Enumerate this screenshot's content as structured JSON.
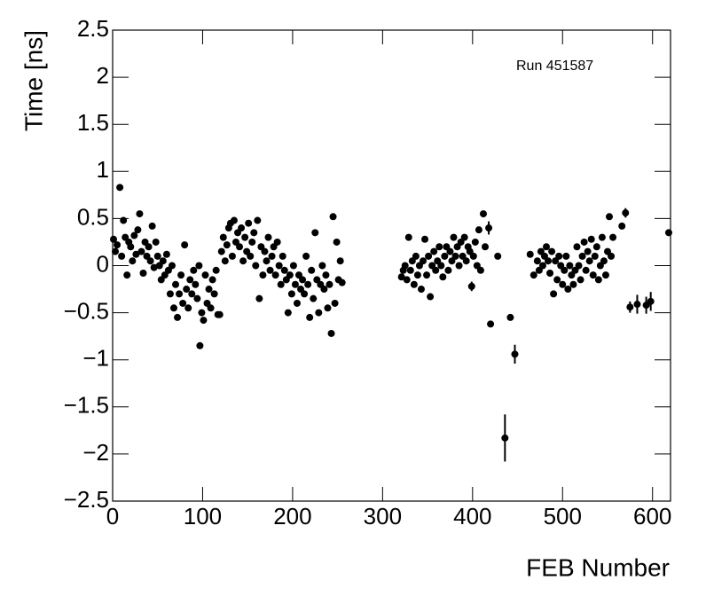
{
  "chart_data": {
    "type": "scatter",
    "annotation": "Run 451587",
    "x_label": "FEB Number",
    "y_label": "Time [ns]",
    "color": "#000000",
    "xlim": [
      0,
      620
    ],
    "ylim": [
      -2.5,
      2.5
    ],
    "xticks": [
      0,
      100,
      200,
      300,
      400,
      500,
      600
    ],
    "yticks": [
      {
        "value": -2.5,
        "label": "−2.5"
      },
      {
        "value": -2,
        "label": "−2"
      },
      {
        "value": -1.5,
        "label": "−1.5"
      },
      {
        "value": -1,
        "label": "−1"
      },
      {
        "value": -0.5,
        "label": "−0.5"
      },
      0,
      0.5,
      1,
      1.5,
      2,
      2.5
    ],
    "x": [
      1,
      3,
      5,
      8,
      10,
      12,
      14,
      16,
      18,
      20,
      22,
      24,
      26,
      28,
      30,
      32,
      34,
      36,
      38,
      40,
      42,
      44,
      46,
      48,
      50,
      52,
      54,
      56,
      58,
      60,
      62,
      64,
      66,
      68,
      70,
      72,
      74,
      76,
      78,
      80,
      82,
      84,
      86,
      88,
      90,
      92,
      94,
      96,
      97,
      99,
      101,
      103,
      105,
      107,
      109,
      111,
      113,
      115,
      117,
      119,
      121,
      123,
      125,
      127,
      129,
      131,
      133,
      135,
      137,
      139,
      141,
      143,
      145,
      147,
      149,
      151,
      153,
      155,
      157,
      159,
      161,
      163,
      165,
      167,
      169,
      171,
      173,
      175,
      177,
      179,
      181,
      183,
      185,
      187,
      189,
      191,
      193,
      195,
      197,
      199,
      201,
      203,
      205,
      207,
      209,
      211,
      213,
      215,
      217,
      219,
      221,
      223,
      225,
      227,
      229,
      231,
      233,
      235,
      237,
      239,
      241,
      243,
      245,
      247,
      249,
      251,
      253,
      255,
      321,
      323,
      325,
      327,
      329,
      331,
      333,
      335,
      337,
      339,
      341,
      343,
      345,
      347,
      349,
      351,
      353,
      355,
      357,
      359,
      361,
      363,
      365,
      367,
      369,
      371,
      373,
      375,
      377,
      379,
      381,
      383,
      385,
      387,
      389,
      391,
      393,
      395,
      397,
      399,
      401,
      403,
      405,
      407,
      409,
      412,
      414,
      418,
      420,
      428,
      436,
      442,
      447,
      464,
      468,
      472,
      474,
      476,
      478,
      480,
      482,
      484,
      486,
      488,
      490,
      492,
      494,
      496,
      498,
      500,
      502,
      504,
      506,
      508,
      510,
      512,
      514,
      516,
      518,
      520,
      522,
      524,
      526,
      528,
      530,
      532,
      534,
      536,
      538,
      540,
      542,
      544,
      546,
      548,
      550,
      552,
      554,
      556,
      566,
      570,
      575,
      583,
      593,
      598,
      618
    ],
    "y": [
      0.28,
      0.15,
      0.22,
      0.83,
      0.1,
      0.48,
      0.3,
      -0.1,
      0.25,
      0.2,
      0.05,
      0.32,
      0.12,
      0.38,
      0.55,
      0.15,
      -0.08,
      0.25,
      0.1,
      0.2,
      0.05,
      0.42,
      -0.02,
      0.25,
      0.1,
      0.0,
      -0.15,
      0.05,
      -0.1,
      0.12,
      -0.05,
      -0.3,
      0.0,
      -0.45,
      -0.2,
      -0.55,
      -0.3,
      -0.1,
      -0.4,
      0.22,
      -0.25,
      -0.45,
      -0.15,
      -0.3,
      -0.05,
      -0.2,
      -0.35,
      0.0,
      -0.85,
      -0.5,
      -0.58,
      -0.1,
      -0.4,
      -0.25,
      -0.45,
      -0.15,
      -0.3,
      -0.05,
      -0.52,
      -0.52,
      0.15,
      0.3,
      0.05,
      0.22,
      0.4,
      0.45,
      0.1,
      0.48,
      0.25,
      0.35,
      0.2,
      0.4,
      0.05,
      0.3,
      0.15,
      0.45,
      0.1,
      0.25,
      0.35,
      0.0,
      0.48,
      -0.35,
      0.2,
      -0.1,
      0.15,
      0.05,
      0.3,
      -0.05,
      0.1,
      0.2,
      -0.1,
      0.25,
      0.0,
      -0.2,
      0.1,
      -0.05,
      -0.15,
      -0.5,
      -0.1,
      -0.3,
      0.0,
      -0.2,
      -0.4,
      -0.1,
      -0.25,
      -0.15,
      -0.3,
      0.1,
      -0.2,
      -0.55,
      -0.05,
      -0.35,
      0.35,
      -0.15,
      -0.5,
      -0.2,
      0.0,
      -0.25,
      -0.1,
      -0.45,
      -0.2,
      -0.72,
      0.52,
      -0.4,
      0.25,
      -0.15,
      0.05,
      -0.18,
      -0.12,
      -0.05,
      0.0,
      -0.15,
      0.3,
      -0.05,
      0.05,
      -0.2,
      0.1,
      -0.1,
      0.0,
      -0.25,
      0.05,
      0.28,
      -0.1,
      0.1,
      -0.33,
      0.0,
      0.15,
      -0.05,
      0.05,
      0.2,
      0.0,
      -0.12,
      0.1,
      0.2,
      -0.05,
      0.15,
      0.05,
      0.3,
      0.1,
      0.2,
      0.0,
      0.25,
      0.1,
      0.3,
      0.05,
      0.2,
      0.15,
      -0.22,
      0.1,
      0.25,
      0.0,
      0.38,
      -0.05,
      0.55,
      0.2,
      0.4,
      -0.62,
      0.1,
      -1.83,
      -0.55,
      -0.94,
      0.12,
      -0.1,
      0.05,
      -0.05,
      0.15,
      0.0,
      0.1,
      0.2,
      0.05,
      -0.08,
      0.15,
      -0.3,
      0.05,
      -0.15,
      0.1,
      0.0,
      -0.2,
      -0.05,
      0.1,
      -0.25,
      0.0,
      -0.1,
      -0.2,
      -0.05,
      0.2,
      0.0,
      -0.15,
      0.1,
      0.25,
      -0.05,
      0.15,
      0.05,
      0.28,
      -0.1,
      0.1,
      0.2,
      -0.15,
      0.0,
      0.3,
      0.05,
      -0.1,
      0.15,
      0.52,
      0.1,
      0.3,
      0.42,
      0.56,
      -0.44,
      -0.41,
      -0.42,
      -0.38,
      0.35
    ],
    "yerr": [
      0.03,
      0.03,
      0.03,
      0.03,
      0.03,
      0.03,
      0.03,
      0.03,
      0.03,
      0.03,
      0.03,
      0.03,
      0.03,
      0.03,
      0.03,
      0.03,
      0.03,
      0.03,
      0.03,
      0.03,
      0.03,
      0.03,
      0.03,
      0.03,
      0.03,
      0.03,
      0.03,
      0.03,
      0.03,
      0.03,
      0.03,
      0.03,
      0.03,
      0.03,
      0.03,
      0.03,
      0.03,
      0.03,
      0.03,
      0.03,
      0.03,
      0.03,
      0.03,
      0.03,
      0.03,
      0.03,
      0.03,
      0.03,
      0.03,
      0.03,
      0.03,
      0.03,
      0.03,
      0.03,
      0.03,
      0.03,
      0.03,
      0.03,
      0.03,
      0.03,
      0.03,
      0.03,
      0.03,
      0.03,
      0.03,
      0.03,
      0.03,
      0.03,
      0.03,
      0.03,
      0.03,
      0.03,
      0.03,
      0.03,
      0.03,
      0.03,
      0.03,
      0.03,
      0.03,
      0.03,
      0.03,
      0.03,
      0.03,
      0.03,
      0.03,
      0.03,
      0.03,
      0.03,
      0.03,
      0.03,
      0.03,
      0.03,
      0.03,
      0.03,
      0.03,
      0.03,
      0.03,
      0.03,
      0.03,
      0.03,
      0.03,
      0.03,
      0.03,
      0.03,
      0.03,
      0.03,
      0.03,
      0.03,
      0.03,
      0.03,
      0.03,
      0.03,
      0.03,
      0.03,
      0.03,
      0.03,
      0.03,
      0.03,
      0.03,
      0.03,
      0.03,
      0.03,
      0.03,
      0.03,
      0.03,
      0.03,
      0.03,
      0.03,
      0.03,
      0.03,
      0.03,
      0.03,
      0.03,
      0.03,
      0.03,
      0.03,
      0.03,
      0.03,
      0.03,
      0.03,
      0.03,
      0.03,
      0.03,
      0.03,
      0.03,
      0.03,
      0.03,
      0.03,
      0.03,
      0.03,
      0.03,
      0.03,
      0.03,
      0.03,
      0.03,
      0.03,
      0.03,
      0.03,
      0.03,
      0.03,
      0.03,
      0.03,
      0.03,
      0.03,
      0.03,
      0.03,
      0.03,
      0.05,
      0.03,
      0.03,
      0.03,
      0.03,
      0.03,
      0.03,
      0.03,
      0.07,
      0.03,
      0.03,
      0.25,
      0.03,
      0.1,
      0.03,
      0.03,
      0.03,
      0.03,
      0.03,
      0.03,
      0.03,
      0.03,
      0.03,
      0.03,
      0.03,
      0.03,
      0.03,
      0.03,
      0.03,
      0.03,
      0.03,
      0.03,
      0.03,
      0.03,
      0.03,
      0.03,
      0.03,
      0.03,
      0.03,
      0.03,
      0.03,
      0.03,
      0.03,
      0.03,
      0.03,
      0.03,
      0.03,
      0.03,
      0.03,
      0.03,
      0.03,
      0.03,
      0.03,
      0.03,
      0.03,
      0.03,
      0.03,
      0.03,
      0.03,
      0.03,
      0.05,
      0.06,
      0.1,
      0.09,
      0.1,
      0.03
    ]
  }
}
